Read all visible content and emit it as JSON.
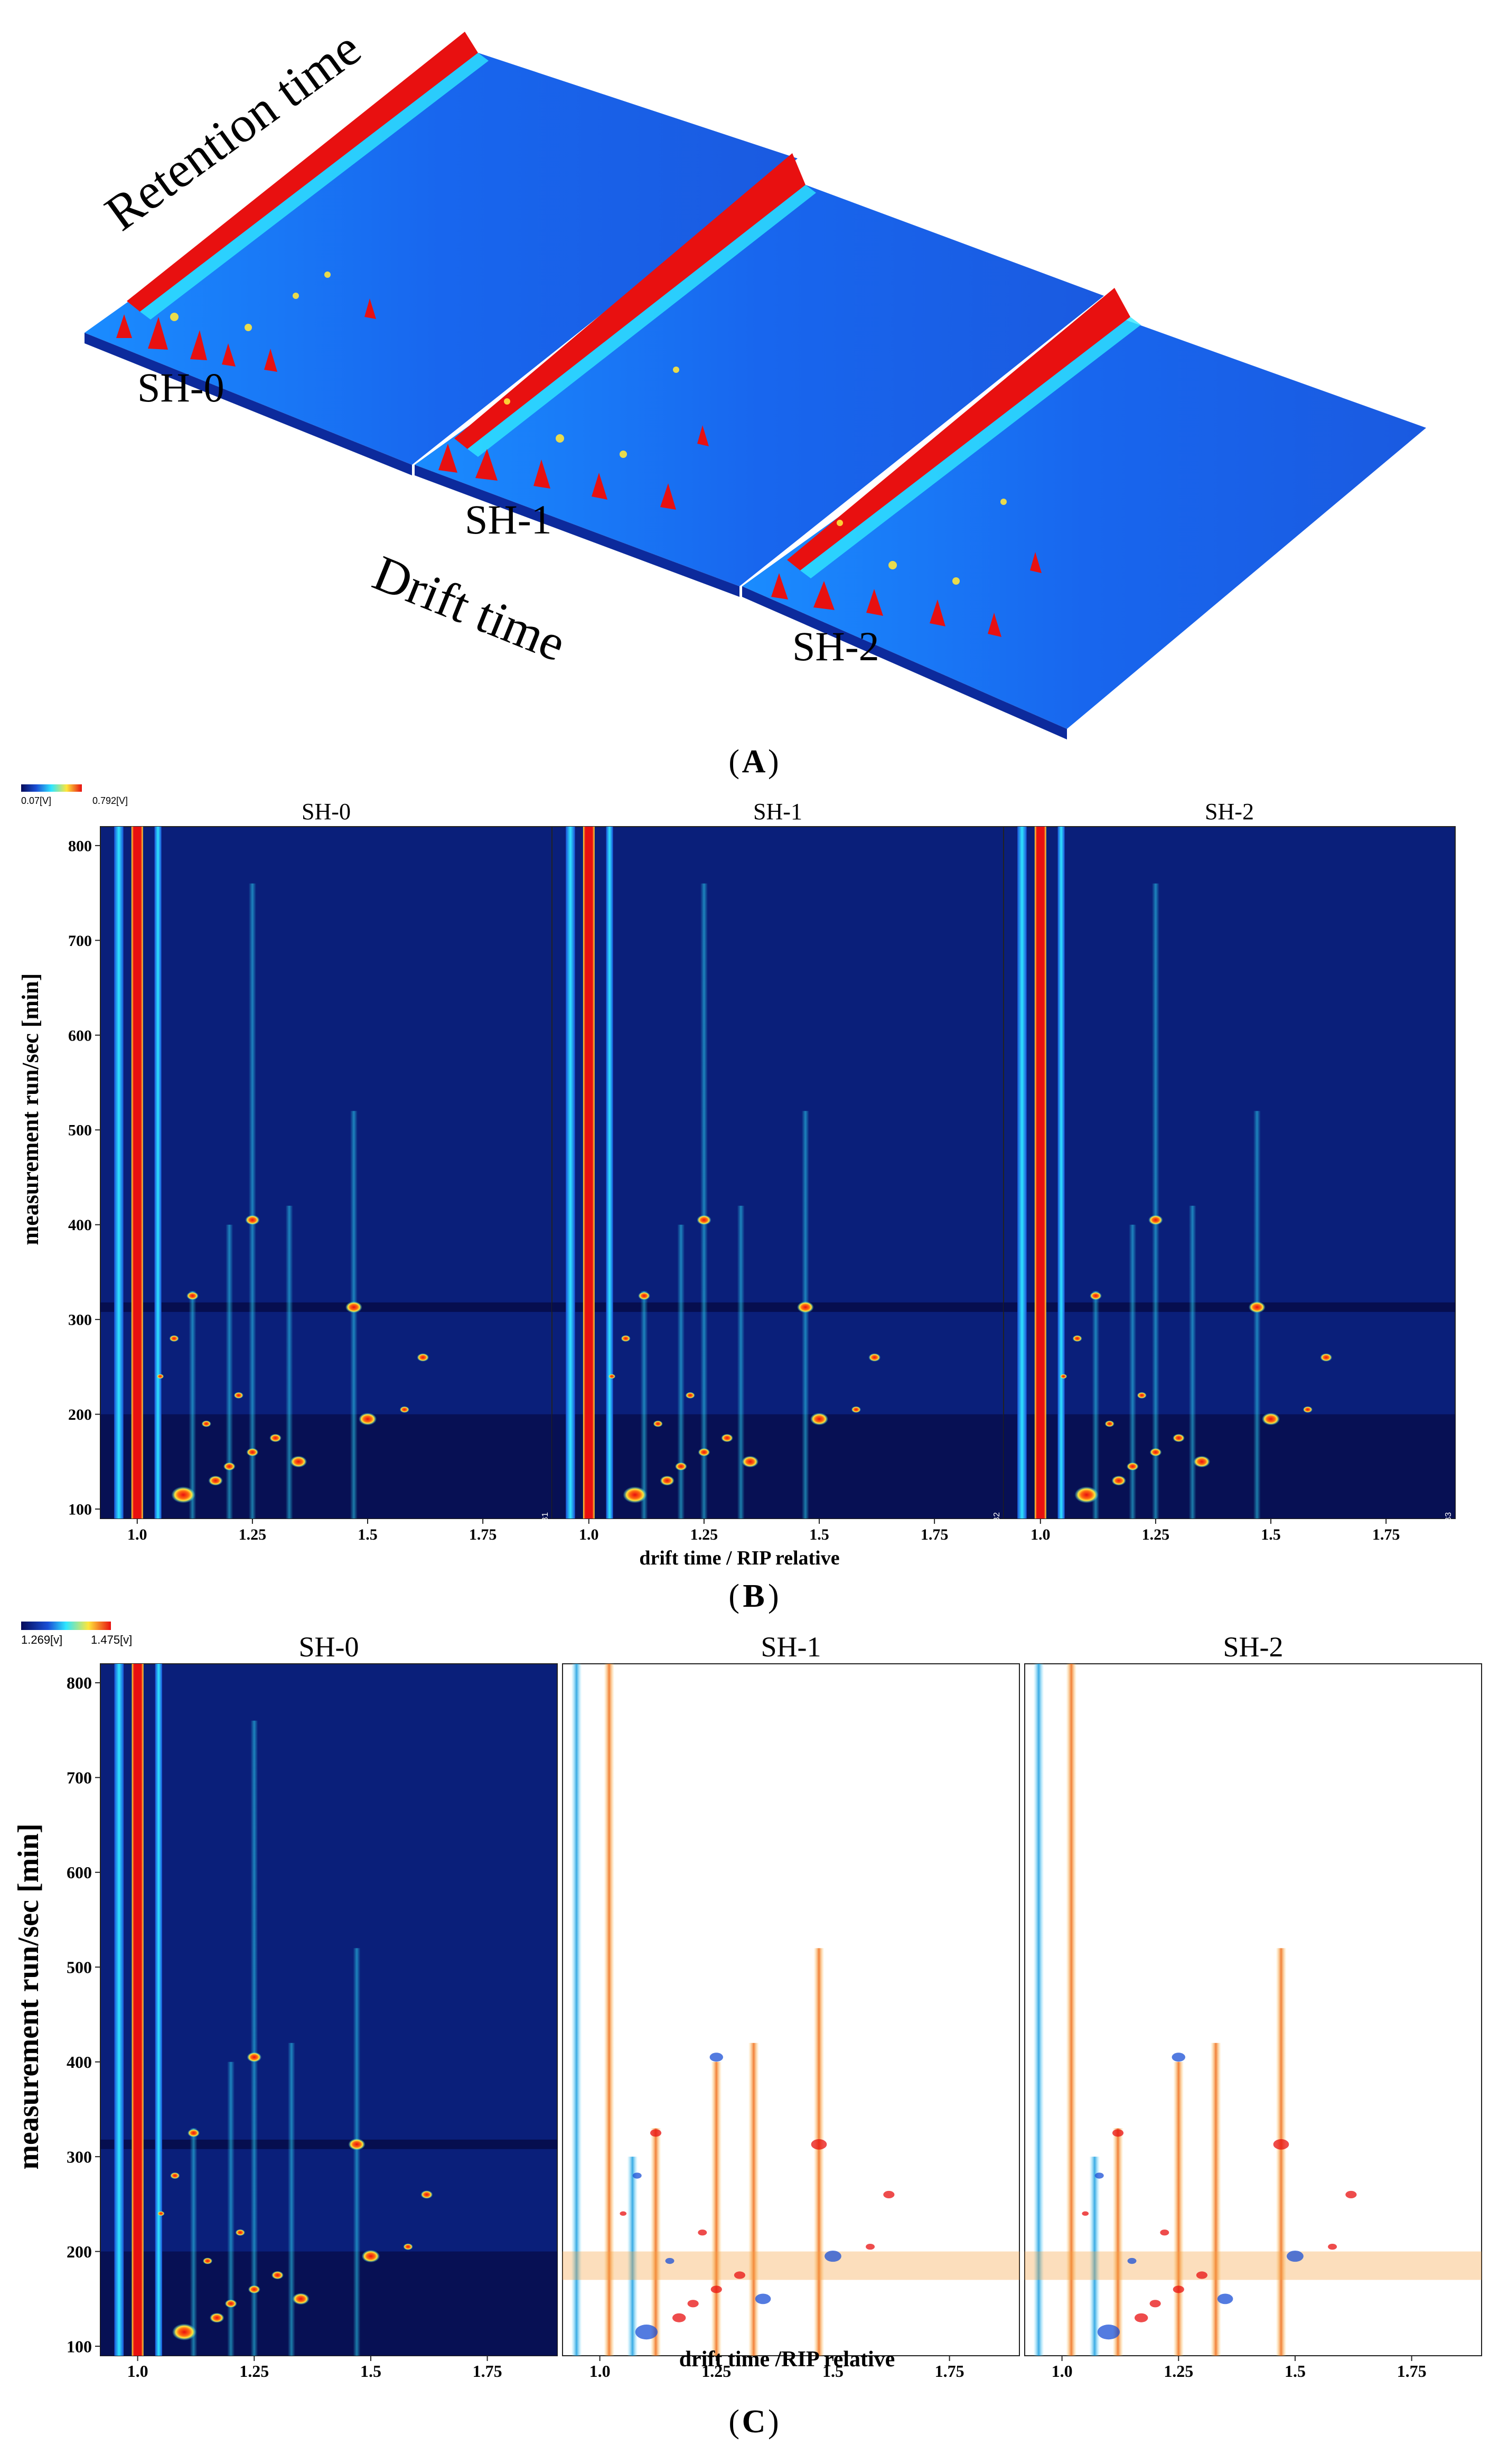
{
  "colors": {
    "bg_blue": "#0a1f7a",
    "dark_blue": "#060b5a",
    "mid_blue": "#1a4fd6",
    "cyan": "#2fe6ff",
    "yellow": "#ffe63a",
    "red": "#e81010",
    "diff_white": "#ffffff"
  },
  "panelA": {
    "label": "A",
    "axis_retention": "Retention time",
    "axis_drift": "Drift time",
    "samples": [
      "SH-0",
      "SH-1",
      "SH-2"
    ]
  },
  "panelB": {
    "label": "B",
    "colorbar_min": "0.07[V]",
    "colorbar_max": "0.792[V]",
    "titles": [
      "SH-0",
      "SH-1",
      "SH-2"
    ],
    "ylabel": "measurement run/sec [min]",
    "xlabel": "drift time / RIP relative",
    "corner_tags": [
      "[+] B1",
      "[+] B2",
      "[+] B3"
    ]
  },
  "panelC": {
    "label": "C",
    "colorbar_min": "1.269[v]",
    "colorbar_max": "1.475[v]",
    "titles": [
      "SH-0",
      "SH-1",
      "SH-2"
    ],
    "ylabel": "measurement run/sec [min]",
    "xlabel": "drift time /RIP relative"
  },
  "chart_data": {
    "type": "heatmap",
    "description_units": "GC-IMS topographic plots; x = drift time (RIP relative), y = retention time (s)",
    "x_ticks": [
      1.0,
      1.25,
      1.5,
      1.75
    ],
    "x_tick_labels": [
      "1.0",
      "1.25",
      "1.5",
      "1.75"
    ],
    "y_ticks": [
      100,
      200,
      300,
      400,
      500,
      600,
      700,
      800
    ],
    "y_tick_labels": [
      "100",
      "200",
      "300",
      "400",
      "500",
      "600",
      "700",
      "800"
    ],
    "xlim": [
      0.92,
      1.9
    ],
    "ylim": [
      90,
      820
    ],
    "rip_lines": [
      {
        "x": 0.96,
        "color": "cyan",
        "width": 0.02
      },
      {
        "x": 1.0,
        "color": "red",
        "width": 0.025
      },
      {
        "x": 1.045,
        "color": "cyan",
        "width": 0.015
      }
    ],
    "streaks": [
      {
        "x": 1.12,
        "y_top": 330
      },
      {
        "x": 1.2,
        "y_top": 400
      },
      {
        "x": 1.25,
        "y_top": 760
      },
      {
        "x": 1.33,
        "y_top": 420
      },
      {
        "x": 1.47,
        "y_top": 520
      }
    ],
    "hotspots": [
      {
        "x": 1.25,
        "y": 405,
        "r": 0.012
      },
      {
        "x": 1.47,
        "y": 313,
        "r": 0.014
      },
      {
        "x": 1.12,
        "y": 325,
        "r": 0.01
      },
      {
        "x": 1.5,
        "y": 195,
        "r": 0.015
      },
      {
        "x": 1.62,
        "y": 260,
        "r": 0.01
      },
      {
        "x": 1.58,
        "y": 205,
        "r": 0.008
      },
      {
        "x": 1.1,
        "y": 115,
        "r": 0.02
      },
      {
        "x": 1.17,
        "y": 130,
        "r": 0.012
      },
      {
        "x": 1.25,
        "y": 160,
        "r": 0.01
      },
      {
        "x": 1.35,
        "y": 150,
        "r": 0.014
      },
      {
        "x": 1.2,
        "y": 145,
        "r": 0.01
      },
      {
        "x": 1.3,
        "y": 175,
        "r": 0.01
      },
      {
        "x": 1.15,
        "y": 190,
        "r": 0.008
      },
      {
        "x": 1.22,
        "y": 220,
        "r": 0.008
      },
      {
        "x": 1.05,
        "y": 240,
        "r": 0.006
      },
      {
        "x": 1.08,
        "y": 280,
        "r": 0.008
      }
    ],
    "diff_streaks_red": [
      {
        "x": 1.02,
        "y_top": 820
      },
      {
        "x": 1.12,
        "y_top": 330
      },
      {
        "x": 1.25,
        "y_top": 400
      },
      {
        "x": 1.33,
        "y_top": 420
      },
      {
        "x": 1.47,
        "y_top": 520
      }
    ],
    "diff_streaks_blue": [
      {
        "x": 0.95,
        "y_top": 820
      },
      {
        "x": 1.07,
        "y_top": 300
      }
    ]
  }
}
